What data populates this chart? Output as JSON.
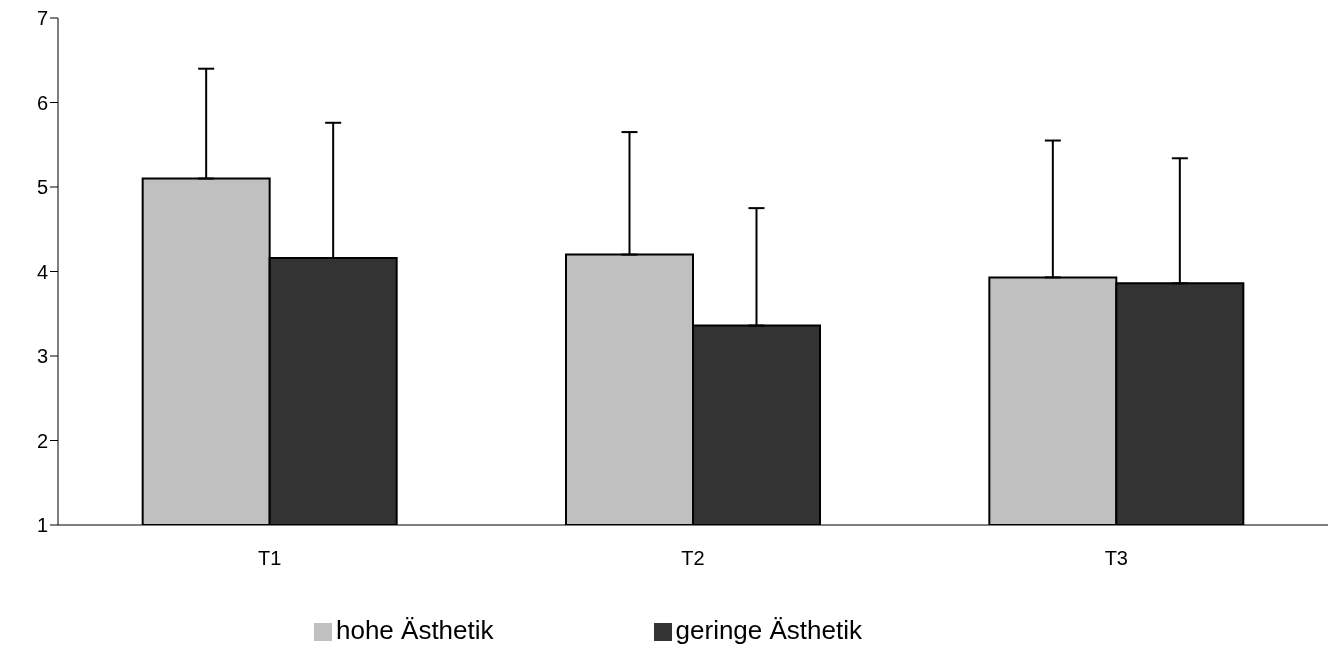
{
  "chart_data": {
    "type": "bar",
    "categories": [
      "T1",
      "T2",
      "T3"
    ],
    "series": [
      {
        "name": "hohe Ästhetik",
        "color": "#c0c0c0",
        "values": [
          5.1,
          4.2,
          3.93
        ],
        "errors": [
          [
            5.1,
            6.4
          ],
          [
            4.2,
            5.65
          ],
          [
            3.93,
            5.55
          ]
        ]
      },
      {
        "name": "geringe Ästhetik",
        "color": "#333333",
        "values": [
          4.16,
          3.36,
          3.86
        ],
        "errors": [
          [
            4.16,
            5.76
          ],
          [
            3.36,
            4.75
          ],
          [
            3.86,
            5.34
          ]
        ]
      }
    ],
    "ylim": [
      1,
      7
    ],
    "yticks": [
      1,
      2,
      3,
      4,
      5,
      6,
      7
    ],
    "grid": false,
    "legend": "bottom"
  }
}
